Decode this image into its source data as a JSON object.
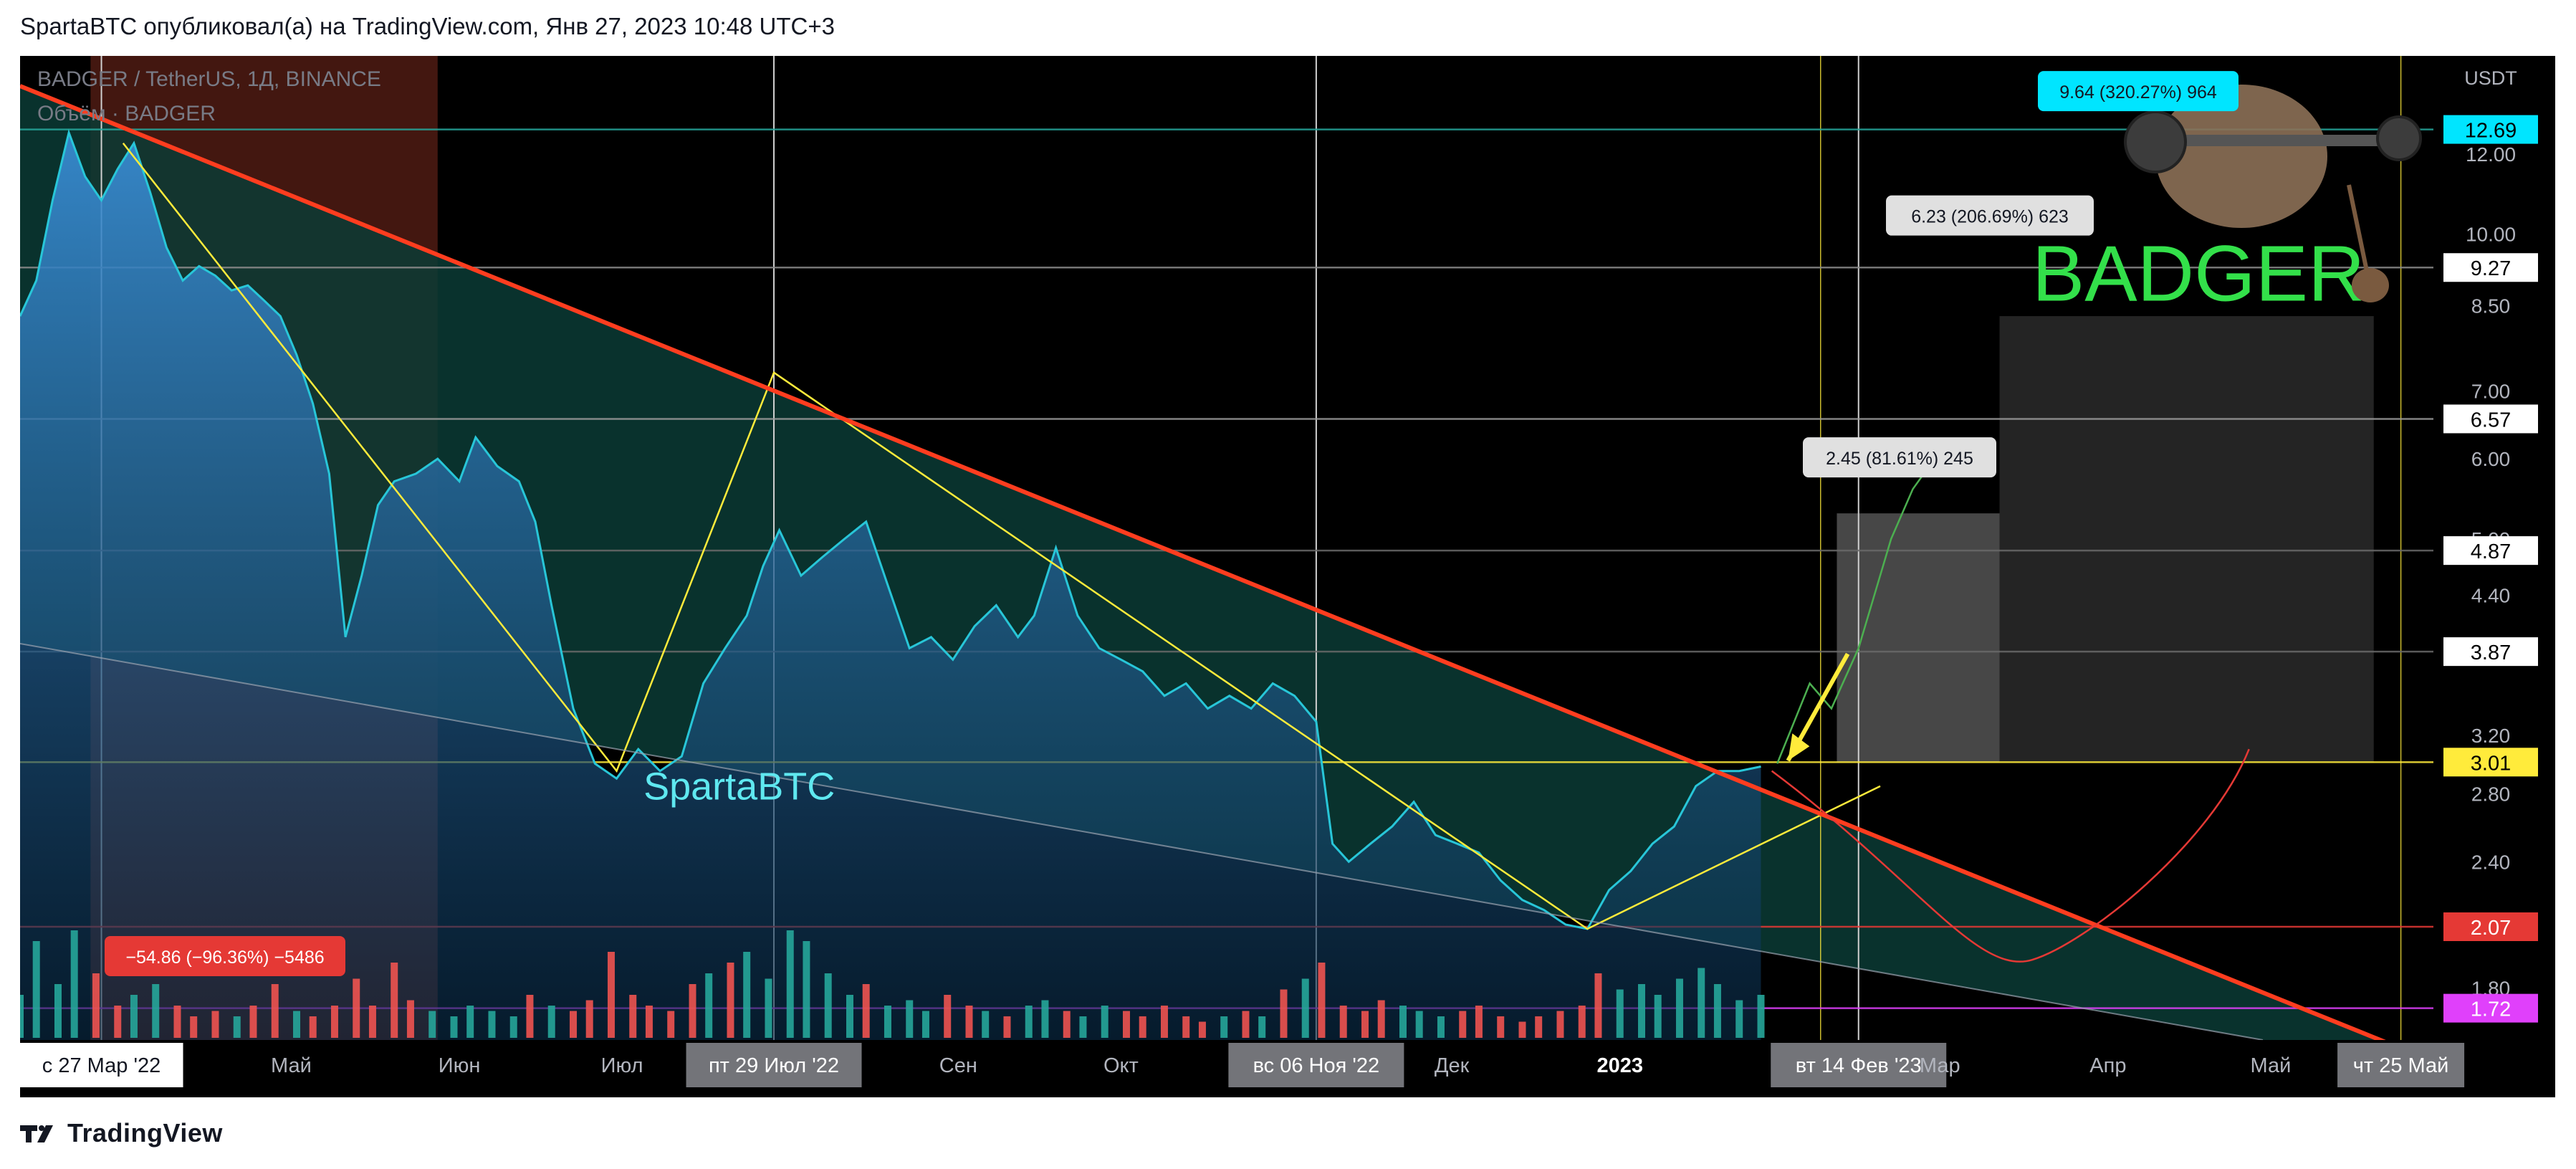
{
  "caption": "SpartaBTC опубликовал(а) на TradingView.com, Янв 27, 2023 10:48 UTC+3",
  "footer": {
    "brand": "TradingView",
    "logo_icon": "tradingview-logo-icon"
  },
  "symbol_header": {
    "line1": "BADGER / TetherUS, 1Д, BINANCE",
    "line2": "Объём · BADGER"
  },
  "watermarks": {
    "author": "SpartaBTC",
    "ticker": "BADGER"
  },
  "colors": {
    "background": "#000000",
    "price_line": "#28c6d8",
    "trendline": "#ff3d1f",
    "zigzag": "#ffeb3b",
    "channel_fill": "#0b3b35",
    "bull_path": "#4caf50",
    "bear_path": "#e53935",
    "volume_up": "#26a69a",
    "volume_down": "#ef5350",
    "axis_text": "#b2b5be"
  },
  "chart_data": {
    "type": "area",
    "title": "BADGER / TetherUS, 1Д, BINANCE",
    "xlabel": "",
    "ylabel": "USDT",
    "y_scale": "log",
    "ylim": [
      1.6,
      15.0
    ],
    "xlim": [
      "2022-03-12",
      "2023-05-31"
    ],
    "grid": true,
    "legend": "none",
    "x_tick_labels": [
      {
        "date": "2022-03-27",
        "label": "с 27 Мар '22",
        "highlight": true
      },
      {
        "date": "2022-05-01",
        "label": "Май"
      },
      {
        "date": "2022-06-01",
        "label": "Июн"
      },
      {
        "date": "2022-07-01",
        "label": "Июл"
      },
      {
        "date": "2022-07-29",
        "label": "пт 29 Июл '22",
        "highlight": true
      },
      {
        "date": "2022-09-01",
        "label": "Сен"
      },
      {
        "date": "2022-10-01",
        "label": "Окт"
      },
      {
        "date": "2022-11-06",
        "label": "вс 06 Ноя '22",
        "highlight": true
      },
      {
        "date": "2022-12-01",
        "label": "Дек"
      },
      {
        "date": "2023-01-01",
        "label": "2023",
        "bold": true
      },
      {
        "date": "2023-02-14",
        "label": "вт 14 Фев '23",
        "highlight": true
      },
      {
        "date": "2023-03-01",
        "label": "Мар"
      },
      {
        "date": "2023-04-01",
        "label": "Апр"
      },
      {
        "date": "2023-05-01",
        "label": "Май"
      },
      {
        "date": "2023-05-25",
        "label": "чт 25 Май",
        "highlight": true
      }
    ],
    "y_tick_labels": [
      {
        "value": 1.8,
        "label": "1.80"
      },
      {
        "value": 2.4,
        "label": "2.40"
      },
      {
        "value": 2.8,
        "label": "2.80"
      },
      {
        "value": 3.2,
        "label": "3.20"
      },
      {
        "value": 4.4,
        "label": "4.40"
      },
      {
        "value": 5.0,
        "label": "5.00"
      },
      {
        "value": 6.0,
        "label": "6.00"
      },
      {
        "value": 7.0,
        "label": "7.00"
      },
      {
        "value": 8.5,
        "label": "8.50"
      },
      {
        "value": 10.0,
        "label": "10.00"
      },
      {
        "value": 12.0,
        "label": "12.00"
      }
    ],
    "y_axis_unit": "USDT",
    "price_levels": [
      {
        "value": 12.69,
        "label": "12.69",
        "color": "#00e5ff",
        "text_color": "#000000",
        "line": "#26a69a"
      },
      {
        "value": 9.27,
        "label": "9.27",
        "color": "#ffffff",
        "text_color": "#000000",
        "line": "#8a8a8a"
      },
      {
        "value": 6.57,
        "label": "6.57",
        "color": "#ffffff",
        "text_color": "#000000",
        "line": "#9a9a9a"
      },
      {
        "value": 4.87,
        "label": "4.87",
        "color": "#ffffff",
        "text_color": "#000000",
        "line": "#6a6a6a"
      },
      {
        "value": 3.87,
        "label": "3.87",
        "color": "#ffffff",
        "text_color": "#000000",
        "line": "#6a6a6a"
      },
      {
        "value": 3.01,
        "label": "3.01",
        "color": "#ffeb3b",
        "text_color": "#000000",
        "line": "#ffeb3b"
      },
      {
        "value": 2.07,
        "label": "2.07",
        "color": "#e53935",
        "text_color": "#ffffff",
        "line": "#e53935"
      },
      {
        "value": 1.72,
        "label": "1.72",
        "color": "#e040fb",
        "text_color": "#ffffff",
        "line": "#e040fb"
      }
    ],
    "series": [
      {
        "name": "BADGER / TetherUS",
        "x": [
          "2022-03-12",
          "2022-03-15",
          "2022-03-18",
          "2022-03-21",
          "2022-03-24",
          "2022-03-27",
          "2022-03-30",
          "2022-04-02",
          "2022-04-05",
          "2022-04-08",
          "2022-04-11",
          "2022-04-14",
          "2022-04-17",
          "2022-04-20",
          "2022-04-23",
          "2022-04-26",
          "2022-04-29",
          "2022-05-02",
          "2022-05-05",
          "2022-05-08",
          "2022-05-11",
          "2022-05-14",
          "2022-05-17",
          "2022-05-20",
          "2022-05-24",
          "2022-05-28",
          "2022-06-01",
          "2022-06-04",
          "2022-06-08",
          "2022-06-12",
          "2022-06-15",
          "2022-06-18",
          "2022-06-22",
          "2022-06-26",
          "2022-06-30",
          "2022-07-04",
          "2022-07-08",
          "2022-07-12",
          "2022-07-16",
          "2022-07-20",
          "2022-07-24",
          "2022-07-27",
          "2022-07-30",
          "2022-08-03",
          "2022-08-07",
          "2022-08-11",
          "2022-08-15",
          "2022-08-19",
          "2022-08-23",
          "2022-08-27",
          "2022-08-31",
          "2022-09-04",
          "2022-09-08",
          "2022-09-12",
          "2022-09-15",
          "2022-09-19",
          "2022-09-23",
          "2022-09-27",
          "2022-10-01",
          "2022-10-05",
          "2022-10-09",
          "2022-10-13",
          "2022-10-17",
          "2022-10-21",
          "2022-10-25",
          "2022-10-29",
          "2022-11-02",
          "2022-11-06",
          "2022-11-09",
          "2022-11-12",
          "2022-11-16",
          "2022-11-20",
          "2022-11-24",
          "2022-11-28",
          "2022-12-02",
          "2022-12-06",
          "2022-12-10",
          "2022-12-14",
          "2022-12-18",
          "2022-12-22",
          "2022-12-26",
          "2022-12-30",
          "2023-01-03",
          "2023-01-07",
          "2023-01-11",
          "2023-01-15",
          "2023-01-19",
          "2023-01-23",
          "2023-01-27"
        ],
        "y": [
          8.3,
          9.0,
          10.8,
          12.6,
          11.4,
          10.8,
          11.6,
          12.3,
          11.0,
          9.7,
          9.0,
          9.3,
          9.1,
          8.8,
          8.9,
          8.6,
          8.3,
          7.6,
          6.8,
          5.8,
          4.0,
          4.6,
          5.4,
          5.7,
          5.8,
          6.0,
          5.7,
          6.3,
          5.9,
          5.7,
          5.2,
          4.3,
          3.4,
          3.0,
          2.9,
          3.1,
          2.95,
          3.05,
          3.6,
          3.9,
          4.2,
          4.7,
          5.1,
          4.6,
          4.8,
          5.0,
          5.2,
          4.5,
          3.9,
          4.0,
          3.8,
          4.1,
          4.3,
          4.0,
          4.2,
          4.9,
          4.2,
          3.9,
          3.8,
          3.7,
          3.5,
          3.6,
          3.4,
          3.5,
          3.4,
          3.6,
          3.5,
          3.3,
          2.5,
          2.4,
          2.5,
          2.6,
          2.75,
          2.55,
          2.5,
          2.45,
          2.3,
          2.2,
          2.15,
          2.08,
          2.06,
          2.25,
          2.35,
          2.5,
          2.6,
          2.85,
          2.95,
          2.95,
          2.98
        ]
      },
      {
        "name": "Объём",
        "type": "bar",
        "note_values_relative": true,
        "values": [
          0.4,
          0.9,
          0.5,
          1.0,
          0.6,
          0.3,
          0.4,
          0.5,
          0.3,
          0.2,
          0.25,
          0.2,
          0.3,
          0.5,
          0.25,
          0.2,
          0.3,
          0.55,
          0.3,
          0.7,
          0.35,
          0.25,
          0.2,
          0.3,
          0.25,
          0.2,
          0.4,
          0.3,
          0.25,
          0.35,
          0.8,
          0.4,
          0.3,
          0.25,
          0.5,
          0.6,
          0.7,
          0.8,
          0.55,
          1.0,
          0.9,
          0.6,
          0.4,
          0.5,
          0.3,
          0.35,
          0.25,
          0.4,
          0.3,
          0.25,
          0.2,
          0.3,
          0.35,
          0.25,
          0.2,
          0.3,
          0.25,
          0.2,
          0.3,
          0.2,
          0.15,
          0.2,
          0.25,
          0.2,
          0.45,
          0.55,
          0.7,
          0.3,
          0.25,
          0.35,
          0.3,
          0.25,
          0.2,
          0.25,
          0.3,
          0.2,
          0.15,
          0.2,
          0.25,
          0.3,
          0.6,
          0.45,
          0.5,
          0.4,
          0.55,
          0.65,
          0.5,
          0.35,
          0.4
        ]
      }
    ],
    "measure_labels": [
      {
        "text": "−54.86 (−96.36%) −5486",
        "color": "#e53935"
      },
      {
        "text": "9.64 (320.27%) 964",
        "color": "#00e5ff"
      },
      {
        "text": "6.23 (206.69%) 623",
        "color": "#e0e0e0"
      },
      {
        "text": "2.45 (81.61%) 245",
        "color": "#e0e0e0"
      }
    ]
  }
}
